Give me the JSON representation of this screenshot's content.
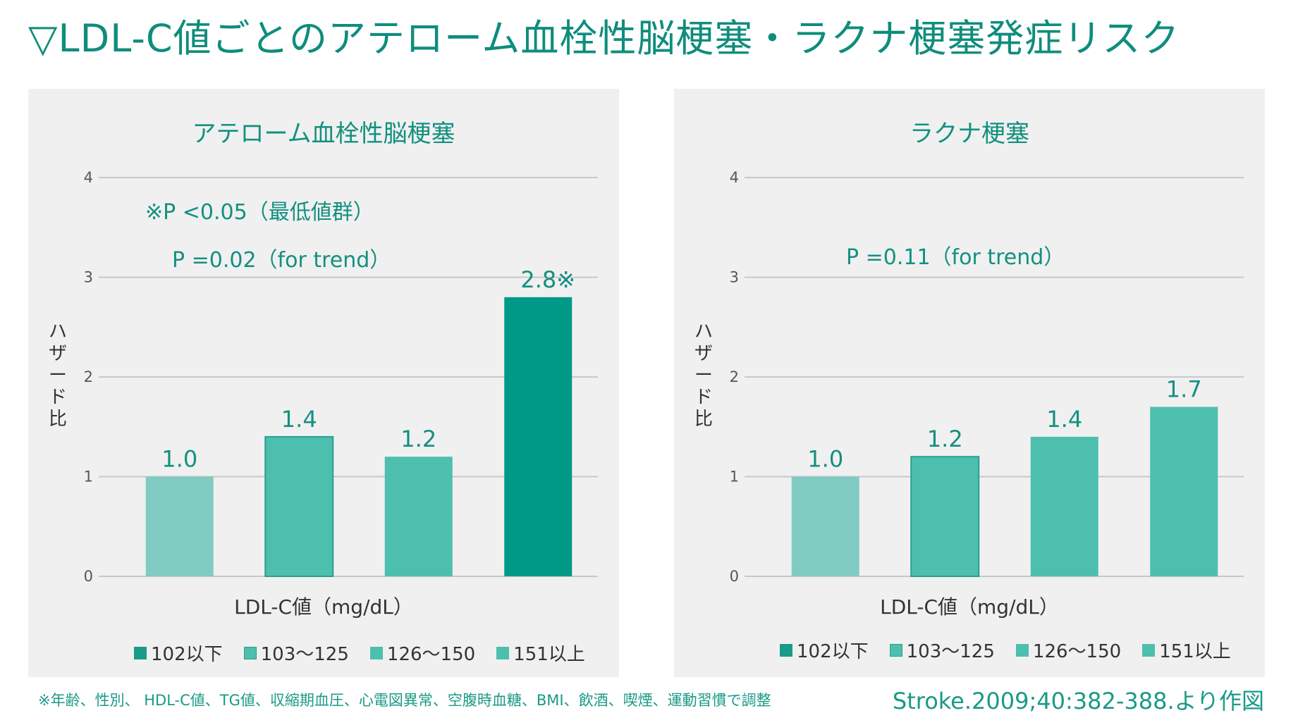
{
  "title": "▽LDL-C値ごとのアテローム血栓性脳梗塞・ラクナ梗塞発症リスク",
  "footnote": "※年齢、性別、 HDL-C値、TG値、収縮期血圧、心電図異常、空腹時血糖、BMI、飲酒、喫煙、運動習慣で調整",
  "source": "Stroke.2009;40:382-388.より作図",
  "colors": {
    "accent": "#0f8d7c",
    "bar_light": "#80cbc2",
    "bar_mid": "#4dbfaf",
    "bar_dark": "#009987"
  },
  "chart_data": [
    {
      "type": "bar",
      "title": "アテローム血栓性脳梗塞",
      "ylabel": [
        "ハ",
        "ザ",
        "ー",
        "ド",
        "比"
      ],
      "xlabel": "LDL-C値（mg/dL）",
      "ylim": [
        0,
        4
      ],
      "yticks": [
        "0",
        "1",
        "2",
        "3",
        "4"
      ],
      "categories": [
        "102以下",
        "103～125",
        "126～150",
        "151以上"
      ],
      "values": [
        1.0,
        1.4,
        1.2,
        2.8
      ],
      "data_labels": [
        "1.0",
        "1.4",
        "1.2",
        "2.8※"
      ],
      "bar_colors": [
        "#80cbc2",
        "#4dbfaf",
        "#4dbfaf",
        "#009987"
      ],
      "annotations": [
        "※P <0.05（最低値群）",
        "P =0.02（for trend）"
      ],
      "grid": true,
      "legend": "bottom"
    },
    {
      "type": "bar",
      "title": "ラクナ梗塞",
      "ylabel": [
        "ハ",
        "ザ",
        "ー",
        "ド",
        "比"
      ],
      "xlabel": "LDL-C値（mg/dL）",
      "ylim": [
        0,
        4
      ],
      "yticks": [
        "0",
        "1",
        "2",
        "3",
        "4"
      ],
      "categories": [
        "102以下",
        "103～125",
        "126～150",
        "151以上"
      ],
      "values": [
        1.0,
        1.2,
        1.4,
        1.7
      ],
      "data_labels": [
        "1.0",
        "1.2",
        "1.4",
        "1.7"
      ],
      "bar_colors": [
        "#80cbc2",
        "#4dbfaf",
        "#4dbfaf",
        "#4dbfaf"
      ],
      "annotations": [
        "P =0.11（for trend）"
      ],
      "grid": true,
      "legend": "bottom"
    }
  ]
}
